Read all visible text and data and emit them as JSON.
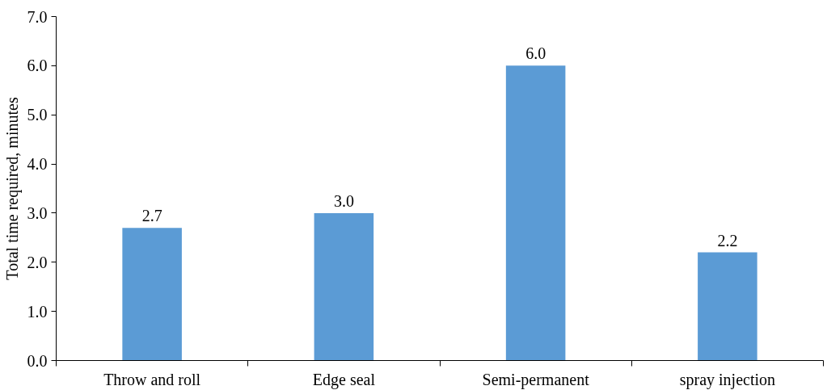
{
  "chart_data": {
    "type": "bar",
    "ylabel": "Total time required, minutes",
    "categories": [
      "Throw and roll",
      "Edge seal",
      "Semi-permanent",
      "spray injection"
    ],
    "values": [
      2.7,
      3.0,
      6.0,
      2.2
    ],
    "value_labels": [
      "2.7",
      "3.0",
      "6.0",
      "2.2"
    ],
    "color": "#5b9bd5",
    "ylim": [
      0,
      7
    ],
    "yticks": [
      {
        "value": 0,
        "label": "0.0"
      },
      {
        "value": 1,
        "label": "1.0"
      },
      {
        "value": 2,
        "label": "2.0"
      },
      {
        "value": 3,
        "label": "3.0"
      },
      {
        "value": 4,
        "label": "4.0"
      },
      {
        "value": 5,
        "label": "5.0"
      },
      {
        "value": 6,
        "label": "6.0"
      },
      {
        "value": 7,
        "label": "7.0"
      }
    ],
    "grid": false
  }
}
